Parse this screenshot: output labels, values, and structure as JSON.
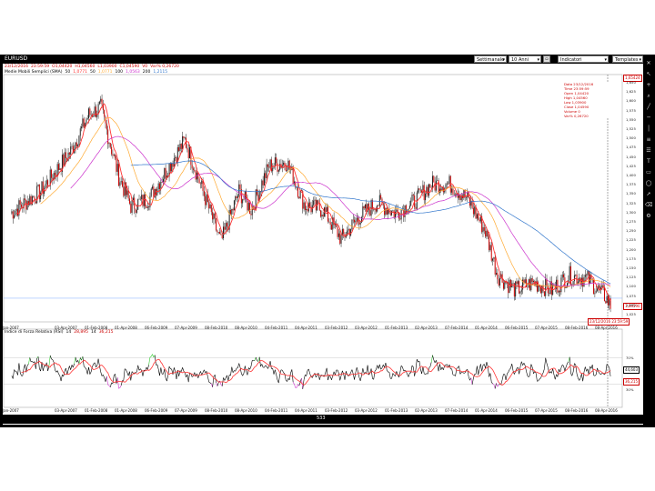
{
  "window": {
    "symbol": "EURUSD",
    "period_select": "Settimanale",
    "range_select": "10 Anni",
    "indicator_select": "Indicatori",
    "template_select": "Templates"
  },
  "header": {
    "ohlc_items": [
      {
        "text": "23/12/2016",
        "color": "#cc0000"
      },
      {
        "text": "23:59:59",
        "color": "#cc0000"
      },
      {
        "text": "O1,04420",
        "color": "#cc0000"
      },
      {
        "text": "H1,04560",
        "color": "#cc0000"
      },
      {
        "text": "L1,03900",
        "color": "#cc0000"
      },
      {
        "text": "C1,04590",
        "color": "#cc0000"
      },
      {
        "text": "V0",
        "color": "#cc0000"
      },
      {
        "text": "Var% 0,26720",
        "color": "#cc0000"
      }
    ],
    "ma_legend": [
      {
        "text": "Medie Mobili Semplici (SMA)",
        "color": "#000000"
      },
      {
        "text": "50",
        "color": "#000000"
      },
      {
        "text": "1,0771",
        "color": "#ff3333"
      },
      {
        "text": "50",
        "color": "#000000"
      },
      {
        "text": "1,0771",
        "color": "#ffaa33"
      },
      {
        "text": "100",
        "color": "#000000"
      },
      {
        "text": "1,0563",
        "color": "#cc33cc"
      },
      {
        "text": "200",
        "color": "#000000"
      },
      {
        "text": "1,2115",
        "color": "#3377cc"
      }
    ]
  },
  "infobox": [
    "Data 23/12/2016",
    "Time 23:59:59",
    "Open 1,04420",
    "High 1,04560",
    "Low 1,03900",
    "Close 1,04590",
    "Volume 0",
    "Var% 0,26720"
  ],
  "price_axis": [
    "1,650",
    "1,625",
    "1,600",
    "1,575",
    "1,550",
    "1,525",
    "1,500",
    "1,475",
    "1,450",
    "1,425",
    "1,400",
    "1,375",
    "1,350",
    "1,325",
    "1,300",
    "1,275",
    "1,250",
    "1,225",
    "1,200",
    "1,175",
    "1,150",
    "1,125",
    "1,100",
    "1,075",
    "1,050",
    "1,025"
  ],
  "price_boxes": {
    "top": "1,65424",
    "last": "1,04590",
    "crosshair_date": "23/12/2016 23:59:59"
  },
  "rsi": {
    "items": [
      {
        "text": "Indice di Forza Relativa (RSI)",
        "color": "#000000"
      },
      {
        "text": "14",
        "color": "#000000"
      },
      {
        "text": "28,895",
        "color": "#cc0000"
      },
      {
        "text": "14",
        "color": "#000000"
      },
      {
        "text": "36,215",
        "color": "#cc0000"
      }
    ],
    "axis": [
      "70%",
      "30%"
    ],
    "box_black": "44,603",
    "box_red": "36,215"
  },
  "date_axis": [
    "Jan-2007",
    "03-Apr-2007",
    "01-Feb-2008",
    "01-Apr-2008",
    "06-Feb-2009",
    "07-Apr-2009",
    "08-Feb-2010",
    "08-Apr-2010",
    "04-Feb-2011",
    "04-Apr-2011",
    "03-Feb-2012",
    "03-Apr-2012",
    "01-Feb-2013",
    "02-Apr-2013",
    "07-Feb-2014",
    "01-Apr-2014",
    "06-Feb-2015",
    "07-Apr-2015",
    "08-Feb-2016",
    "08-Apr-2016"
  ],
  "date_bar_label": "533",
  "colors": {
    "candle": "#cc0000",
    "sma50": "#ff3333",
    "sma_orange": "#ffaa33",
    "sma100": "#cc33cc",
    "sma200": "#3377cc",
    "rsi_line": "#000000",
    "rsi_signal": "#ff3333",
    "rsi_high": "#33cc33",
    "rsi_low": "#cc33cc"
  },
  "chart_data": {
    "type": "line",
    "title": "EURUSD",
    "series": [
      {
        "name": "EURUSD",
        "x": [
          2007.0,
          2007.5,
          2008.0,
          2008.3,
          2008.5,
          2008.8,
          2009.0,
          2009.3,
          2009.6,
          2009.9,
          2010.2,
          2010.5,
          2010.8,
          2011.0,
          2011.3,
          2011.6,
          2011.9,
          2012.2,
          2012.5,
          2012.8,
          2013.1,
          2013.4,
          2013.7,
          2014.0,
          2014.3,
          2014.6,
          2014.9,
          2015.1,
          2015.4,
          2015.7,
          2016.0,
          2016.3,
          2016.6,
          2016.9,
          2016.98
        ],
        "values": [
          1.3,
          1.36,
          1.47,
          1.57,
          1.59,
          1.4,
          1.32,
          1.34,
          1.42,
          1.5,
          1.36,
          1.22,
          1.36,
          1.31,
          1.43,
          1.44,
          1.32,
          1.31,
          1.23,
          1.29,
          1.33,
          1.3,
          1.33,
          1.38,
          1.38,
          1.34,
          1.25,
          1.13,
          1.09,
          1.11,
          1.09,
          1.13,
          1.12,
          1.07,
          1.046
        ]
      }
    ],
    "ylim": [
      1.025,
      1.66
    ]
  }
}
